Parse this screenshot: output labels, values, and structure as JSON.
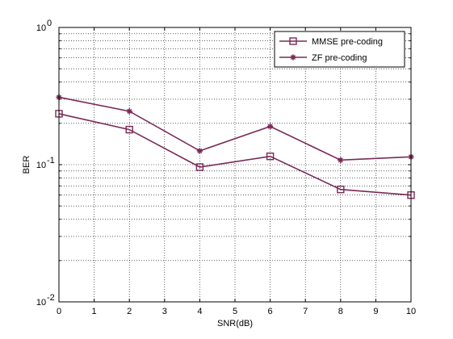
{
  "chart_data": {
    "type": "line",
    "title": "",
    "xlabel": "SNR(dB)",
    "ylabel": "BER",
    "xlim": [
      0,
      10
    ],
    "ylim": [
      0.01,
      1
    ],
    "yscale": "log",
    "grid": true,
    "legend_position": "top-right",
    "x_ticks": [
      0,
      1,
      2,
      3,
      4,
      5,
      6,
      7,
      8,
      9,
      10
    ],
    "x_tick_labels": [
      "0",
      "1",
      "2",
      "3",
      "4",
      "5",
      "6",
      "7",
      "8",
      "9",
      "10"
    ],
    "y_ticks": [
      {
        "value": 1,
        "base": "10",
        "exp": "0"
      },
      {
        "value": 0.1,
        "base": "10",
        "exp": "-1"
      },
      {
        "value": 0.01,
        "base": "10",
        "exp": "-2"
      }
    ],
    "series": [
      {
        "name": "MMSE pre-coding",
        "marker": "square",
        "color": "#7a2a57",
        "x": [
          0,
          2,
          4,
          6,
          8,
          10
        ],
        "y": [
          0.235,
          0.18,
          0.096,
          0.115,
          0.066,
          0.06
        ]
      },
      {
        "name": "ZF pre-coding",
        "marker": "star",
        "color": "#7a2a57",
        "x": [
          0,
          2,
          4,
          6,
          8,
          10
        ],
        "y": [
          0.31,
          0.245,
          0.126,
          0.19,
          0.108,
          0.114
        ]
      }
    ]
  }
}
